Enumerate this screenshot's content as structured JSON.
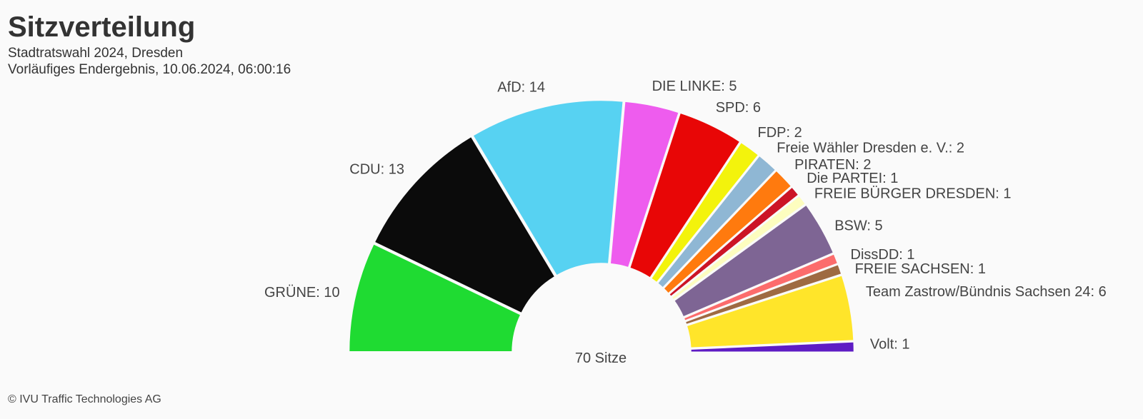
{
  "title": "Sitzverteilung",
  "subtitle_line1": "Stadtratswahl 2024, Dresden",
  "subtitle_line2": "Vorläufiges Endergebnis, 10.06.2024, 06:00:16",
  "credits": "© IVU Traffic Technologies AG",
  "chart_data": {
    "type": "pie",
    "variant": "semicircle-donut (parliament seat distribution)",
    "title": "Sitzverteilung",
    "center_label": "70 Sitze",
    "total": 70,
    "label_format": "{name}: {value}",
    "slices": [
      {
        "name": "GRÜNE",
        "value": 10,
        "color": "#1fdb32"
      },
      {
        "name": "CDU",
        "value": 13,
        "color": "#0b0b0b"
      },
      {
        "name": "AfD",
        "value": 14,
        "color": "#57d2f2"
      },
      {
        "name": "DIE LINKE",
        "value": 5,
        "color": "#ee5cee"
      },
      {
        "name": "SPD",
        "value": 6,
        "color": "#e80606"
      },
      {
        "name": "FDP",
        "value": 2,
        "color": "#f3f30c"
      },
      {
        "name": "Freie Wähler Dresden e. V.",
        "value": 2,
        "color": "#8fb7d4"
      },
      {
        "name": "PIRATEN",
        "value": 2,
        "color": "#ff7a0e"
      },
      {
        "name": "Die PARTEI",
        "value": 1,
        "color": "#cc1426"
      },
      {
        "name": "FREIE BÜRGER DRESDEN",
        "value": 1,
        "color": "#fdfdbf"
      },
      {
        "name": "BSW",
        "value": 5,
        "color": "#7e6594"
      },
      {
        "name": "DissDD",
        "value": 1,
        "color": "#fc6c6c"
      },
      {
        "name": "FREIE SACHSEN",
        "value": 1,
        "color": "#9e6a42"
      },
      {
        "name": "Team Zastrow/Bündnis Sachsen 24",
        "value": 6,
        "color": "#ffe52a"
      },
      {
        "name": "Volt",
        "value": 1,
        "color": "#5e1cc4"
      }
    ]
  }
}
